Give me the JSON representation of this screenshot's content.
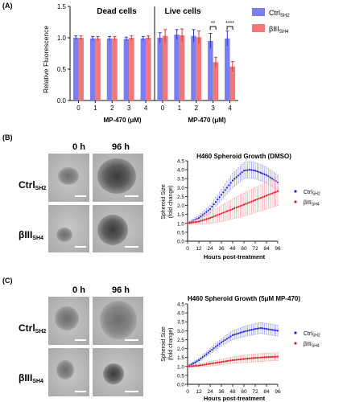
{
  "panels": {
    "a": "(A)",
    "b": "(B)",
    "c": "(C)"
  },
  "micro_labels": {
    "time0": "0 h",
    "time96": "96 h",
    "row_ctrl_main": "Ctrl",
    "row_ctrl_sub": "SH2",
    "row_b3_main": "βIII",
    "row_b3_sub": "SH4"
  },
  "colors": {
    "ctrl": "#7b7ef0",
    "b3": "#f07878",
    "ctrl_dots": "#1a22c8",
    "b3_dots": "#d81a1a"
  },
  "chart_data": [
    {
      "type": "bar",
      "ylabel": "Relative Fluorescence",
      "xlabel": "MP-470 (μM)",
      "xlabel_right": "MP-470 (μM)",
      "group_labels": [
        "Dead cells",
        "Live cells"
      ],
      "categories": [
        "0",
        "1",
        "2",
        "3",
        "4",
        "0",
        "1",
        "2",
        "3",
        "4"
      ],
      "ylim": [
        0,
        1.5
      ],
      "yticks": [
        "0.0",
        "0.5",
        "1.0",
        "1.5"
      ],
      "legend": [
        {
          "main": "Ctrl",
          "sub": "SH2"
        },
        {
          "main": "βIII",
          "sub": "SH4"
        }
      ],
      "series": [
        {
          "values": [
            1.0,
            0.99,
            0.99,
            0.98,
            0.99,
            1.0,
            1.05,
            1.03,
            0.95,
            0.99
          ],
          "errors": [
            0.03,
            0.03,
            0.03,
            0.03,
            0.03,
            0.08,
            0.08,
            0.1,
            0.12,
            0.12
          ]
        },
        {
          "values": [
            1.0,
            0.99,
            0.99,
            1.0,
            1.0,
            1.03,
            1.04,
            1.01,
            0.61,
            0.54
          ],
          "errors": [
            0.03,
            0.03,
            0.03,
            0.03,
            0.03,
            0.1,
            0.1,
            0.1,
            0.08,
            0.08
          ]
        }
      ],
      "significance": [
        "**",
        "****"
      ]
    },
    {
      "type": "scatter",
      "title": "H460 Spheroid Growth (DMSO)",
      "ylabel": "Spheroid Size",
      "ylabel2": "(fold change)",
      "xlabel": "Hours post-treatment",
      "ylim": [
        0,
        4.5
      ],
      "xlim": [
        0,
        96
      ],
      "xticks": [
        "0",
        "12",
        "24",
        "36",
        "48",
        "60",
        "72",
        "84",
        "96"
      ],
      "yticks": [
        "0.0",
        "0.5",
        "1.0",
        "1.5",
        "2.0",
        "2.5",
        "3.0",
        "3.5",
        "4.0",
        "4.5"
      ],
      "legend": [
        {
          "main": "Ctrl",
          "sub": "SH2"
        },
        {
          "main": "βIII",
          "sub": "SH4"
        }
      ],
      "series": [
        {
          "x": [
            0,
            12,
            24,
            36,
            48,
            60,
            66,
            72,
            84,
            96
          ],
          "y": [
            1.0,
            1.3,
            1.8,
            2.6,
            3.4,
            3.95,
            4.0,
            3.95,
            3.7,
            3.3
          ],
          "err": [
            0.05,
            0.15,
            0.2,
            0.3,
            0.4,
            0.45,
            0.45,
            0.45,
            0.45,
            0.4
          ]
        },
        {
          "x": [
            0,
            12,
            24,
            36,
            48,
            60,
            72,
            84,
            96
          ],
          "y": [
            1.0,
            1.1,
            1.3,
            1.55,
            1.8,
            2.05,
            2.3,
            2.55,
            2.8
          ],
          "err": [
            0.05,
            0.15,
            0.3,
            0.45,
            0.55,
            0.65,
            0.7,
            0.75,
            0.8
          ]
        }
      ]
    },
    {
      "type": "scatter",
      "title": "H460 Spheroid Growth (5μM MP-470)",
      "ylabel": "Spheroid Size",
      "ylabel2": "(fold change)",
      "xlabel": "Hours post-treatment",
      "ylim": [
        0,
        4.5
      ],
      "xlim": [
        0,
        96
      ],
      "xticks": [
        "0",
        "12",
        "24",
        "36",
        "48",
        "60",
        "72",
        "84",
        "96"
      ],
      "yticks": [
        "0.0",
        "0.5",
        "1.0",
        "1.5",
        "2.0",
        "2.5",
        "3.0",
        "3.5",
        "4.0",
        "4.5"
      ],
      "legend": [
        {
          "main": "Ctrl",
          "sub": "SH2"
        },
        {
          "main": "βIII",
          "sub": "SH4"
        }
      ],
      "series": [
        {
          "x": [
            0,
            12,
            24,
            36,
            48,
            60,
            72,
            78,
            84,
            96
          ],
          "y": [
            1.0,
            1.35,
            1.85,
            2.35,
            2.75,
            2.95,
            3.1,
            3.15,
            3.1,
            3.0
          ],
          "err": [
            0.05,
            0.1,
            0.15,
            0.2,
            0.25,
            0.28,
            0.3,
            0.3,
            0.3,
            0.3
          ]
        },
        {
          "x": [
            0,
            12,
            24,
            36,
            48,
            60,
            72,
            84,
            96
          ],
          "y": [
            1.0,
            1.05,
            1.15,
            1.25,
            1.35,
            1.42,
            1.48,
            1.52,
            1.55
          ],
          "err": [
            0.05,
            0.08,
            0.12,
            0.15,
            0.18,
            0.2,
            0.22,
            0.22,
            0.22
          ]
        }
      ]
    }
  ]
}
